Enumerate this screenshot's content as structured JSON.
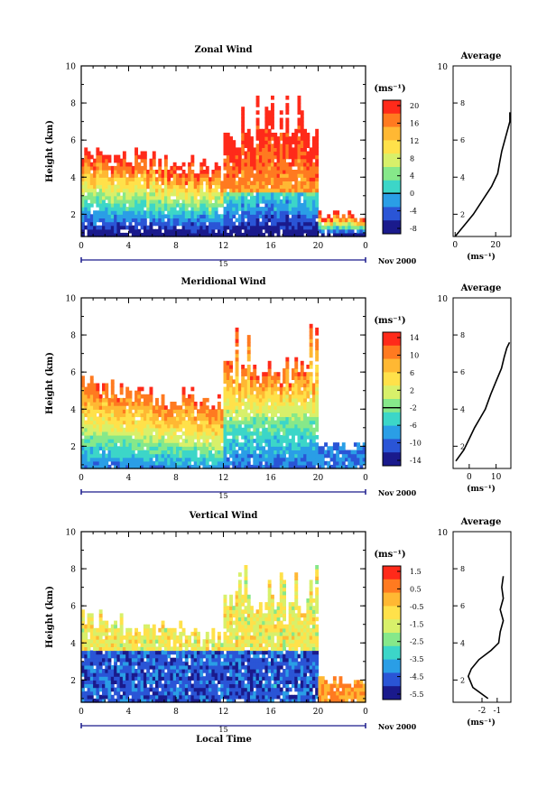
{
  "figure": {
    "xlabel": "Local Time",
    "date_label": "Nov 2000",
    "day_label": "15",
    "average_title": "Average",
    "unit_label": "(ms⁻¹)",
    "ylabel": "Height (km)"
  },
  "panels": [
    {
      "title": "Zonal Wind",
      "colorbar": {
        "unit": "(ms⁻¹)",
        "ticks": [
          "20",
          "16",
          "12",
          "8",
          "4",
          "0",
          "-4",
          "-8"
        ],
        "zero_line_index": 5
      },
      "x_ticks": [
        "0",
        "4",
        "8",
        "12",
        "16",
        "20",
        "0"
      ],
      "y_ticks": [
        "10",
        "8",
        "6",
        "4",
        "2"
      ],
      "avg_x_ticks": [
        "0",
        "20"
      ],
      "avg_y_ticks": [
        "8",
        "6",
        "4",
        "2"
      ]
    },
    {
      "title": "Meridional Wind",
      "colorbar": {
        "unit": "(ms⁻¹)",
        "ticks": [
          "14",
          "10",
          "6",
          "2",
          "-2",
          "-6",
          "-10",
          "-14"
        ],
        "zero_line_index": 4
      },
      "x_ticks": [
        "0",
        "4",
        "8",
        "12",
        "16",
        "20",
        "0"
      ],
      "y_ticks": [
        "10",
        "8",
        "6",
        "4",
        "2"
      ],
      "avg_x_ticks": [
        "0",
        "10"
      ],
      "avg_y_ticks": [
        "8",
        "6",
        "4",
        "2"
      ]
    },
    {
      "title": "Vertical Wind",
      "colorbar": {
        "unit": "(ms⁻¹)",
        "ticks": [
          "1.5",
          "0.5",
          "-0.5",
          "-1.5",
          "-2.5",
          "-3.5",
          "-4.5",
          "-5.5"
        ],
        "zero_line_index": -1
      },
      "x_ticks": [
        "0",
        "4",
        "8",
        "12",
        "16",
        "20",
        "0"
      ],
      "y_ticks": [
        "10",
        "8",
        "6",
        "4",
        "2"
      ],
      "avg_x_ticks": [
        "-2",
        "-1"
      ],
      "avg_y_ticks": [
        "8",
        "6",
        "4",
        "2"
      ]
    }
  ],
  "chart_data": [
    {
      "type": "heatmap",
      "title": "Zonal Wind",
      "xlabel": "Local Time",
      "ylabel": "Height (km)",
      "xlim": [
        0,
        24
      ],
      "ylim": [
        0.8,
        10
      ],
      "z_range": [
        -10,
        22
      ],
      "colorbar_unit": "(ms⁻¹)",
      "series": [
        {
          "name": "Average",
          "x": [
            0,
            3,
            6,
            9,
            12,
            15,
            18,
            21,
            22,
            23,
            25,
            27,
            27
          ],
          "y": [
            0.8,
            1.2,
            1.6,
            2.0,
            2.5,
            3.0,
            3.5,
            4.2,
            4.8,
            5.4,
            6.2,
            7.0,
            7.5
          ]
        }
      ]
    },
    {
      "type": "heatmap",
      "title": "Meridional Wind",
      "xlabel": "Local Time",
      "ylabel": "Height (km)",
      "xlim": [
        0,
        24
      ],
      "ylim": [
        0.8,
        10
      ],
      "z_range": [
        -16,
        16
      ],
      "colorbar_unit": "(ms⁻¹)",
      "series": [
        {
          "name": "Average",
          "x": [
            -5,
            -2,
            0,
            2,
            4,
            6,
            8,
            10,
            12,
            13,
            14,
            15
          ],
          "y": [
            1.2,
            1.8,
            2.4,
            3.0,
            3.5,
            4.0,
            4.8,
            5.5,
            6.2,
            6.8,
            7.3,
            7.6
          ]
        }
      ]
    },
    {
      "type": "heatmap",
      "title": "Vertical Wind",
      "xlabel": "Local Time",
      "ylabel": "Height (km)",
      "xlim": [
        0,
        24
      ],
      "ylim": [
        0.8,
        10
      ],
      "z_range": [
        -6,
        2
      ],
      "colorbar_unit": "(ms⁻¹)",
      "series": [
        {
          "name": "Average",
          "x": [
            -1.6,
            -2.6,
            -2.9,
            -2.7,
            -2.2,
            -1.4,
            -0.9,
            -0.8,
            -0.6,
            -0.8,
            -0.6,
            -0.7,
            -0.6
          ],
          "y": [
            1.0,
            1.6,
            2.2,
            2.6,
            3.1,
            3.6,
            4.0,
            4.6,
            5.2,
            5.8,
            6.4,
            7.0,
            7.6
          ]
        }
      ]
    }
  ]
}
